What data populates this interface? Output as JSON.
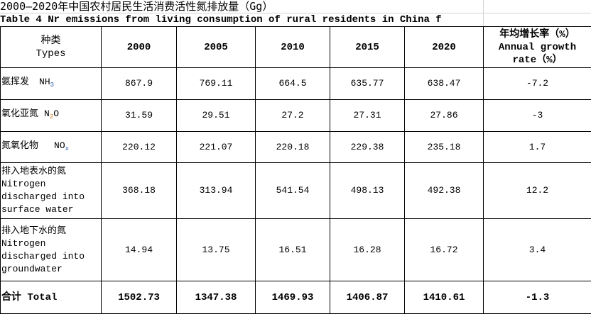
{
  "title": "2000—2020年中国农村居民生活消费活性氮排放量（Gg）",
  "subtitle": "Table 4  Nr emissions from living consumption of rural residents in China f",
  "header": {
    "type_cn": "种类",
    "type_en": "Types",
    "years": [
      "2000",
      "2005",
      "2010",
      "2015",
      "2020"
    ],
    "growth_cn": "年均增长率（%）",
    "growth_en": "Annual growth rate（%）"
  },
  "rows": [
    {
      "cn": "氨挥发",
      "formula": "NH",
      "sub": "3",
      "values": [
        "867.9",
        "769.11",
        "664.5",
        "635.77",
        "638.47"
      ],
      "growth": "-7.2"
    },
    {
      "cn": "氧化亚氮",
      "formula": "N",
      "sub": "2",
      "formula_tail": "O",
      "values": [
        "31.59",
        "29.51",
        "27.2",
        "27.31",
        "27.86"
      ],
      "growth": "-3"
    },
    {
      "cn": "氮氧化物",
      "formula": "NO",
      "sub": "x",
      "values": [
        "220.12",
        "221.07",
        "220.18",
        "229.38",
        "235.18"
      ],
      "growth": "1.7"
    },
    {
      "cn": "排入地表水的氮",
      "en": "Nitrogen discharged into surface water",
      "values": [
        "368.18",
        "313.94",
        "541.54",
        "498.13",
        "492.38"
      ],
      "growth": "12.2"
    },
    {
      "cn": "排入地下水的氮",
      "en": "Nitrogen discharged into groundwater",
      "values": [
        "14.94",
        "13.75",
        "16.51",
        "16.28",
        "16.72"
      ],
      "growth": "3.4"
    }
  ],
  "total": {
    "label": "合计 Total",
    "values": [
      "1502.73",
      "1347.38",
      "1469.93",
      "1406.87",
      "1410.61"
    ],
    "growth": "-1.3"
  }
}
